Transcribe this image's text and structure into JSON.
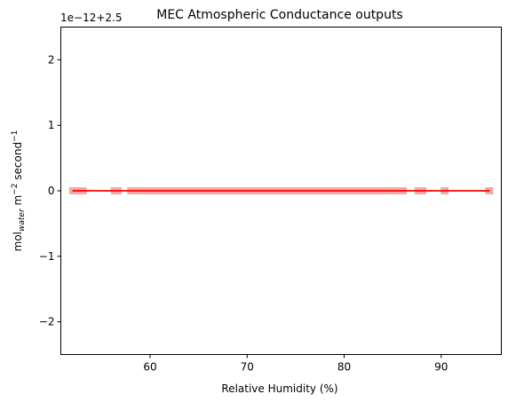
{
  "chart_data": {
    "type": "scatter",
    "title": "MEC Atmospheric Conductance outputs",
    "xlabel": "Relative Humidity (%)",
    "ylabel": {
      "base": "mol",
      "subscript": "water",
      "middle": " m",
      "exp1": "−2",
      "tail": " second",
      "exp2": "−1"
    },
    "offset_text": "1e−12+2.5",
    "xlim": [
      50.8,
      96.2
    ],
    "ylim": [
      -2.5,
      2.5
    ],
    "xticks": [
      60,
      70,
      80,
      90
    ],
    "yticks": [
      -2,
      -1,
      0,
      1,
      2
    ],
    "xtick_labels": [
      "60",
      "70",
      "80",
      "90"
    ],
    "ytick_labels": [
      "−2",
      "−1",
      "0",
      "1",
      "2"
    ],
    "grid": false,
    "legend": "none",
    "series": [
      {
        "color": "#90ee90",
        "marker": "square",
        "x": [
          52.0,
          52.5,
          53.0,
          56.3,
          56.6,
          58.0,
          58.4,
          58.8,
          59.6,
          60.0,
          60.4,
          60.8,
          61.2,
          61.6,
          62.0,
          62.4,
          62.8,
          63.2,
          63.6,
          64.0,
          64.4,
          64.8,
          65.2,
          65.6,
          66.0,
          66.4,
          66.8,
          67.2,
          67.6,
          68.0,
          68.4,
          68.8,
          69.2,
          69.6,
          70.0,
          70.4,
          70.8,
          71.2,
          71.6,
          72.0,
          72.4,
          72.8,
          73.2,
          73.6,
          74.0,
          74.4,
          74.8,
          75.2,
          75.6,
          76.0,
          76.4,
          76.8,
          77.2,
          77.6,
          78.0,
          78.4,
          78.8,
          79.2,
          79.6,
          80.0,
          80.4,
          80.8,
          81.2,
          81.6,
          82.0,
          82.4,
          82.8,
          83.2,
          83.6,
          84.4,
          84.8,
          85.2,
          85.6,
          86.0,
          87.6,
          88.0,
          90.3,
          94.9
        ],
        "y": 0
      },
      {
        "color": "#f4a6a6",
        "marker": "square",
        "x": [
          52.1,
          52.6,
          53.1,
          56.4,
          56.7,
          58.1,
          58.5,
          58.9,
          59.7,
          60.1,
          60.5,
          60.9,
          61.3,
          61.7,
          62.1,
          62.5,
          62.9,
          63.3,
          63.7,
          64.1,
          64.5,
          64.9,
          65.3,
          65.7,
          66.1,
          66.5,
          66.9,
          67.3,
          67.7,
          68.1,
          68.5,
          68.9,
          69.3,
          69.7,
          70.1,
          70.5,
          70.9,
          71.3,
          71.7,
          72.1,
          72.5,
          72.9,
          73.3,
          73.7,
          74.1,
          74.5,
          74.9,
          75.3,
          75.7,
          76.1,
          76.5,
          76.9,
          77.3,
          77.7,
          78.1,
          78.5,
          78.9,
          79.3,
          79.7,
          80.1,
          80.5,
          80.9,
          81.3,
          81.7,
          82.1,
          82.5,
          82.9,
          83.3,
          83.7,
          84.5,
          84.9,
          85.3,
          85.7,
          86.1,
          87.7,
          88.1,
          90.4,
          95.0
        ],
        "y": 0
      },
      {
        "color": "#ff0000",
        "type": "line",
        "x": [
          52.0,
          95.0
        ],
        "y": [
          0,
          0
        ]
      }
    ]
  }
}
